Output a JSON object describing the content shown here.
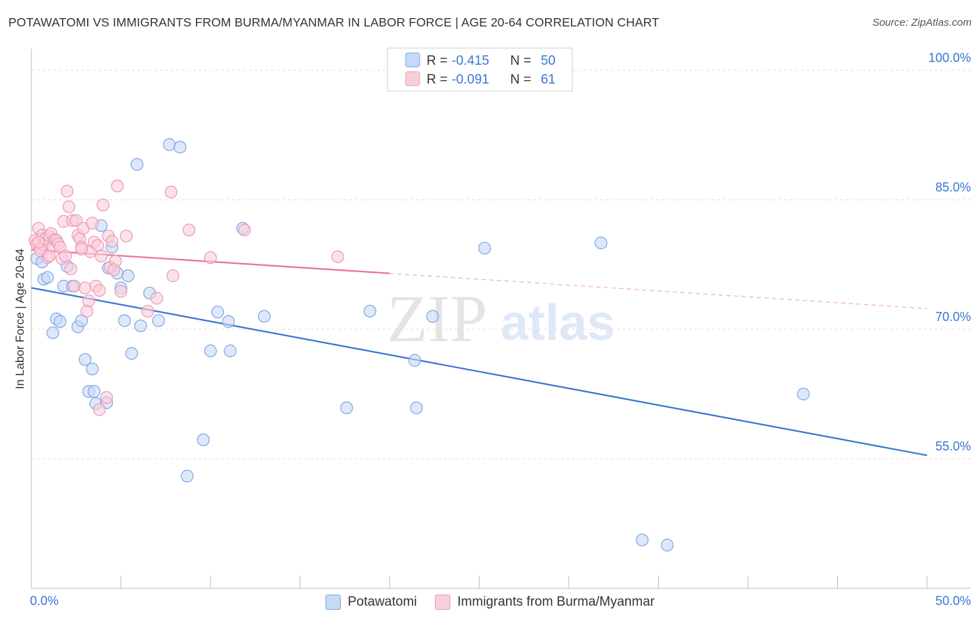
{
  "header": {
    "title": "POTAWATOMI VS IMMIGRANTS FROM BURMA/MYANMAR IN LABOR FORCE | AGE 20-64 CORRELATION CHART",
    "source": "Source: ZipAtlas.com"
  },
  "watermark": {
    "zip": "ZIP",
    "atlas": "atlas"
  },
  "colors": {
    "blue_fill": "#c6d9f7",
    "blue_stroke": "#7ea6e3",
    "blue_line": "#3a76d0",
    "pink_fill": "#f9cedb",
    "pink_stroke": "#ee97b3",
    "pink_line": "#e8739a",
    "value_text": "#3a76d0",
    "grid": "#dddddd"
  },
  "chart_data": {
    "type": "scatter",
    "title": "POTAWATOMI VS IMMIGRANTS FROM BURMA/MYANMAR IN LABOR FORCE | AGE 20-64 CORRELATION CHART",
    "xlabel": "",
    "ylabel": "In Labor Force | Age 20-64",
    "xlim": [
      0,
      50
    ],
    "ylim": [
      40,
      102.5
    ],
    "x_tick_labels": [
      {
        "value": 0,
        "label": "0.0%"
      },
      {
        "value": 50,
        "label": "50.0%"
      }
    ],
    "y_tick_labels": [
      {
        "value": 55,
        "label": "55.0%"
      },
      {
        "value": 70,
        "label": "70.0%"
      },
      {
        "value": 85,
        "label": "85.0%"
      },
      {
        "value": 100,
        "label": "100.0%"
      }
    ],
    "y_gridlines": [
      55,
      70,
      85,
      100
    ],
    "x_ticks": [
      0,
      5,
      10,
      15,
      20,
      25,
      30,
      35,
      40,
      45,
      50
    ],
    "legend_position": "top-center",
    "series": [
      {
        "name": "Potawatomi",
        "R": "-0.415",
        "N": "50",
        "trend": {
          "x1": 0,
          "y1": 74.8,
          "x2": 50,
          "y2": 55.4,
          "dashed_from": null
        },
        "points": [
          [
            0.3,
            78.2
          ],
          [
            0.6,
            77.8
          ],
          [
            0.7,
            75.8
          ],
          [
            0.9,
            76.0
          ],
          [
            1.2,
            69.6
          ],
          [
            1.4,
            71.2
          ],
          [
            1.6,
            70.9
          ],
          [
            1.8,
            75.0
          ],
          [
            2.0,
            77.3
          ],
          [
            2.3,
            75.0
          ],
          [
            2.6,
            70.3
          ],
          [
            2.8,
            71.0
          ],
          [
            3.0,
            66.5
          ],
          [
            3.2,
            62.8
          ],
          [
            3.4,
            65.4
          ],
          [
            3.6,
            61.4
          ],
          [
            3.9,
            82.0
          ],
          [
            4.2,
            61.5
          ],
          [
            4.3,
            77.1
          ],
          [
            4.5,
            79.5
          ],
          [
            4.8,
            76.5
          ],
          [
            5.0,
            74.8
          ],
          [
            5.2,
            71.0
          ],
          [
            5.4,
            76.2
          ],
          [
            5.6,
            67.2
          ],
          [
            5.9,
            89.1
          ],
          [
            6.1,
            70.4
          ],
          [
            6.6,
            74.2
          ],
          [
            7.1,
            71.0
          ],
          [
            7.7,
            91.4
          ],
          [
            8.3,
            91.1
          ],
          [
            8.7,
            53.0
          ],
          [
            9.6,
            57.2
          ],
          [
            10.0,
            67.5
          ],
          [
            10.4,
            72.0
          ],
          [
            11.0,
            70.9
          ],
          [
            11.1,
            67.5
          ],
          [
            11.8,
            81.7
          ],
          [
            13.0,
            71.5
          ],
          [
            17.6,
            60.9
          ],
          [
            18.9,
            72.1
          ],
          [
            21.4,
            66.4
          ],
          [
            21.5,
            60.9
          ],
          [
            22.4,
            71.5
          ],
          [
            25.3,
            79.4
          ],
          [
            31.8,
            80.0
          ],
          [
            34.1,
            45.6
          ],
          [
            35.5,
            45.0
          ],
          [
            43.1,
            62.5
          ],
          [
            3.5,
            62.8
          ]
        ]
      },
      {
        "name": "Immigrants from Burma/Myanmar",
        "R": "-0.091",
        "N": "61",
        "trend": {
          "x1": 0,
          "y1": 79.2,
          "x2": 50,
          "y2": 72.4,
          "dashed_from": 20
        },
        "points": [
          [
            0.2,
            80.3
          ],
          [
            0.3,
            79.9
          ],
          [
            0.4,
            81.7
          ],
          [
            0.5,
            79.4
          ],
          [
            0.6,
            80.9
          ],
          [
            0.7,
            79.8
          ],
          [
            0.8,
            80.5
          ],
          [
            0.9,
            78.3
          ],
          [
            1.0,
            80.8
          ],
          [
            1.1,
            81.1
          ],
          [
            1.2,
            79.6
          ],
          [
            1.3,
            80.4
          ],
          [
            1.4,
            80.3
          ],
          [
            1.5,
            79.9
          ],
          [
            1.6,
            79.5
          ],
          [
            1.7,
            78.2
          ],
          [
            1.8,
            82.5
          ],
          [
            1.9,
            78.5
          ],
          [
            2.0,
            86.0
          ],
          [
            2.1,
            84.2
          ],
          [
            2.2,
            77.0
          ],
          [
            2.3,
            82.6
          ],
          [
            2.4,
            75.0
          ],
          [
            2.5,
            82.6
          ],
          [
            2.6,
            80.9
          ],
          [
            2.7,
            80.5
          ],
          [
            2.8,
            79.5
          ],
          [
            2.9,
            81.7
          ],
          [
            3.0,
            74.8
          ],
          [
            3.1,
            72.1
          ],
          [
            3.2,
            73.3
          ],
          [
            3.3,
            79.0
          ],
          [
            3.4,
            82.3
          ],
          [
            3.5,
            80.1
          ],
          [
            3.6,
            75.0
          ],
          [
            3.7,
            79.7
          ],
          [
            3.8,
            74.5
          ],
          [
            3.9,
            78.5
          ],
          [
            4.0,
            84.4
          ],
          [
            4.2,
            62.1
          ],
          [
            4.3,
            80.8
          ],
          [
            4.4,
            77.2
          ],
          [
            4.5,
            80.2
          ],
          [
            4.7,
            77.9
          ],
          [
            4.8,
            86.6
          ],
          [
            5.0,
            74.4
          ],
          [
            5.3,
            80.8
          ],
          [
            6.5,
            72.1
          ],
          [
            7.0,
            73.6
          ],
          [
            7.8,
            85.9
          ],
          [
            7.9,
            76.2
          ],
          [
            8.8,
            81.5
          ],
          [
            10.0,
            78.3
          ],
          [
            11.9,
            81.5
          ],
          [
            17.1,
            78.4
          ],
          [
            3.8,
            60.7
          ],
          [
            0.5,
            79.1
          ],
          [
            1.0,
            78.5
          ],
          [
            2.8,
            79.3
          ],
          [
            4.6,
            76.9
          ],
          [
            0.4,
            80.1
          ]
        ]
      }
    ]
  }
}
